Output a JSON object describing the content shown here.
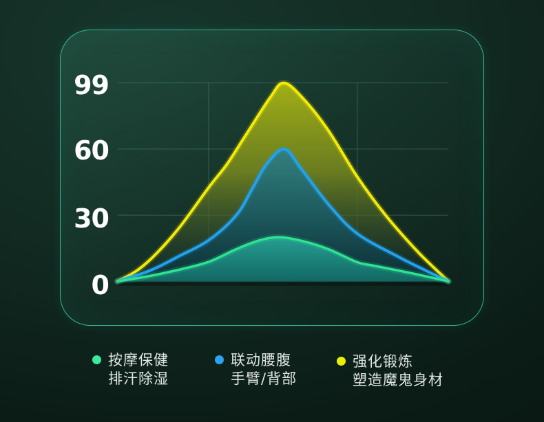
{
  "y_axis": {
    "ticks": [
      "99",
      "60",
      "30",
      "0"
    ],
    "label_color": "#ffffff"
  },
  "legend": {
    "text_color": "#dfe5e2",
    "items": [
      {
        "line1": "按摩保健",
        "line2": "排汗除湿",
        "dot_color": "#3ce99e"
      },
      {
        "line1": "联动腰腹",
        "line2": "手臂/背部",
        "dot_color": "#2aa4f2"
      },
      {
        "line1": "强化锻炼",
        "line2": "塑造魔鬼身材",
        "dot_color": "#eaf005"
      }
    ]
  },
  "theme": {
    "panel_border": "#3cd2ac",
    "grid_color": "rgba(126,206,182,0.28)",
    "baseline_shadow": "rgba(4,16,13,0.5)",
    "tick_color": "#ffffff"
  },
  "chart_data": {
    "type": "area",
    "title": "",
    "xlabel": "",
    "ylabel": "",
    "ylim": [
      0,
      99
    ],
    "y_ticks": [
      0,
      30,
      60,
      99
    ],
    "y_tick_labels": [
      "0",
      "30",
      "60",
      "99"
    ],
    "grid": true,
    "legend_position": "bottom",
    "series": [
      {
        "name": "强化锻炼 塑造魔鬼身材",
        "peak": 99,
        "color": "#f3eb06",
        "width": 4,
        "fill_stops": [
          [
            0,
            "#a9b513",
            0.95
          ],
          [
            0.45,
            "#75861f",
            0.88
          ],
          [
            0.78,
            "#3a522a",
            0.5
          ],
          [
            1,
            "#17372c",
            0.05
          ]
        ],
        "points": [
          [
            0,
            0
          ],
          [
            6,
            5
          ],
          [
            12,
            13
          ],
          [
            19,
            25
          ],
          [
            27.5,
            42.5
          ],
          [
            33,
            53
          ],
          [
            39,
            69
          ],
          [
            46,
            90
          ],
          [
            50.2,
            99
          ],
          [
            56,
            90
          ],
          [
            63.7,
            71
          ],
          [
            72.4,
            47.5
          ],
          [
            81,
            30
          ],
          [
            91,
            13
          ],
          [
            100,
            0
          ]
        ]
      },
      {
        "name": "联动腰腹 手臂/背部",
        "peak": 60,
        "color": "#22a1ee",
        "width": 4,
        "fill_stops": [
          [
            0,
            "#2f8084",
            0.95
          ],
          [
            0.5,
            "#1a5a62",
            0.92
          ],
          [
            1,
            "#0a2e37",
            0.88
          ]
        ],
        "points": [
          [
            0,
            0
          ],
          [
            10,
            5
          ],
          [
            18.7,
            11.5
          ],
          [
            27.5,
            18.6
          ],
          [
            35.9,
            30
          ],
          [
            40.9,
            42.5
          ],
          [
            45,
            53
          ],
          [
            50.4,
            60
          ],
          [
            55.5,
            51
          ],
          [
            63.7,
            35
          ],
          [
            72.4,
            21.7
          ],
          [
            84.4,
            11.5
          ],
          [
            93,
            5
          ],
          [
            100,
            0
          ]
        ]
      },
      {
        "name": "按摩保健 排汗除湿",
        "peak": 20,
        "color": "#2ee391",
        "width": 3.5,
        "fill_stops": [
          [
            0,
            "#27a295",
            0.95
          ],
          [
            1,
            "#136b66",
            0.95
          ]
        ],
        "points": [
          [
            0,
            0
          ],
          [
            10,
            2.5
          ],
          [
            18.7,
            5.3
          ],
          [
            27.5,
            8.8
          ],
          [
            35.9,
            14.6
          ],
          [
            42.9,
            18.6
          ],
          [
            49.2,
            20
          ],
          [
            56.6,
            18
          ],
          [
            63.7,
            14.6
          ],
          [
            72.4,
            8.7
          ],
          [
            77.4,
            7.1
          ],
          [
            87.8,
            4
          ],
          [
            94,
            2
          ],
          [
            100,
            0
          ]
        ]
      }
    ]
  }
}
